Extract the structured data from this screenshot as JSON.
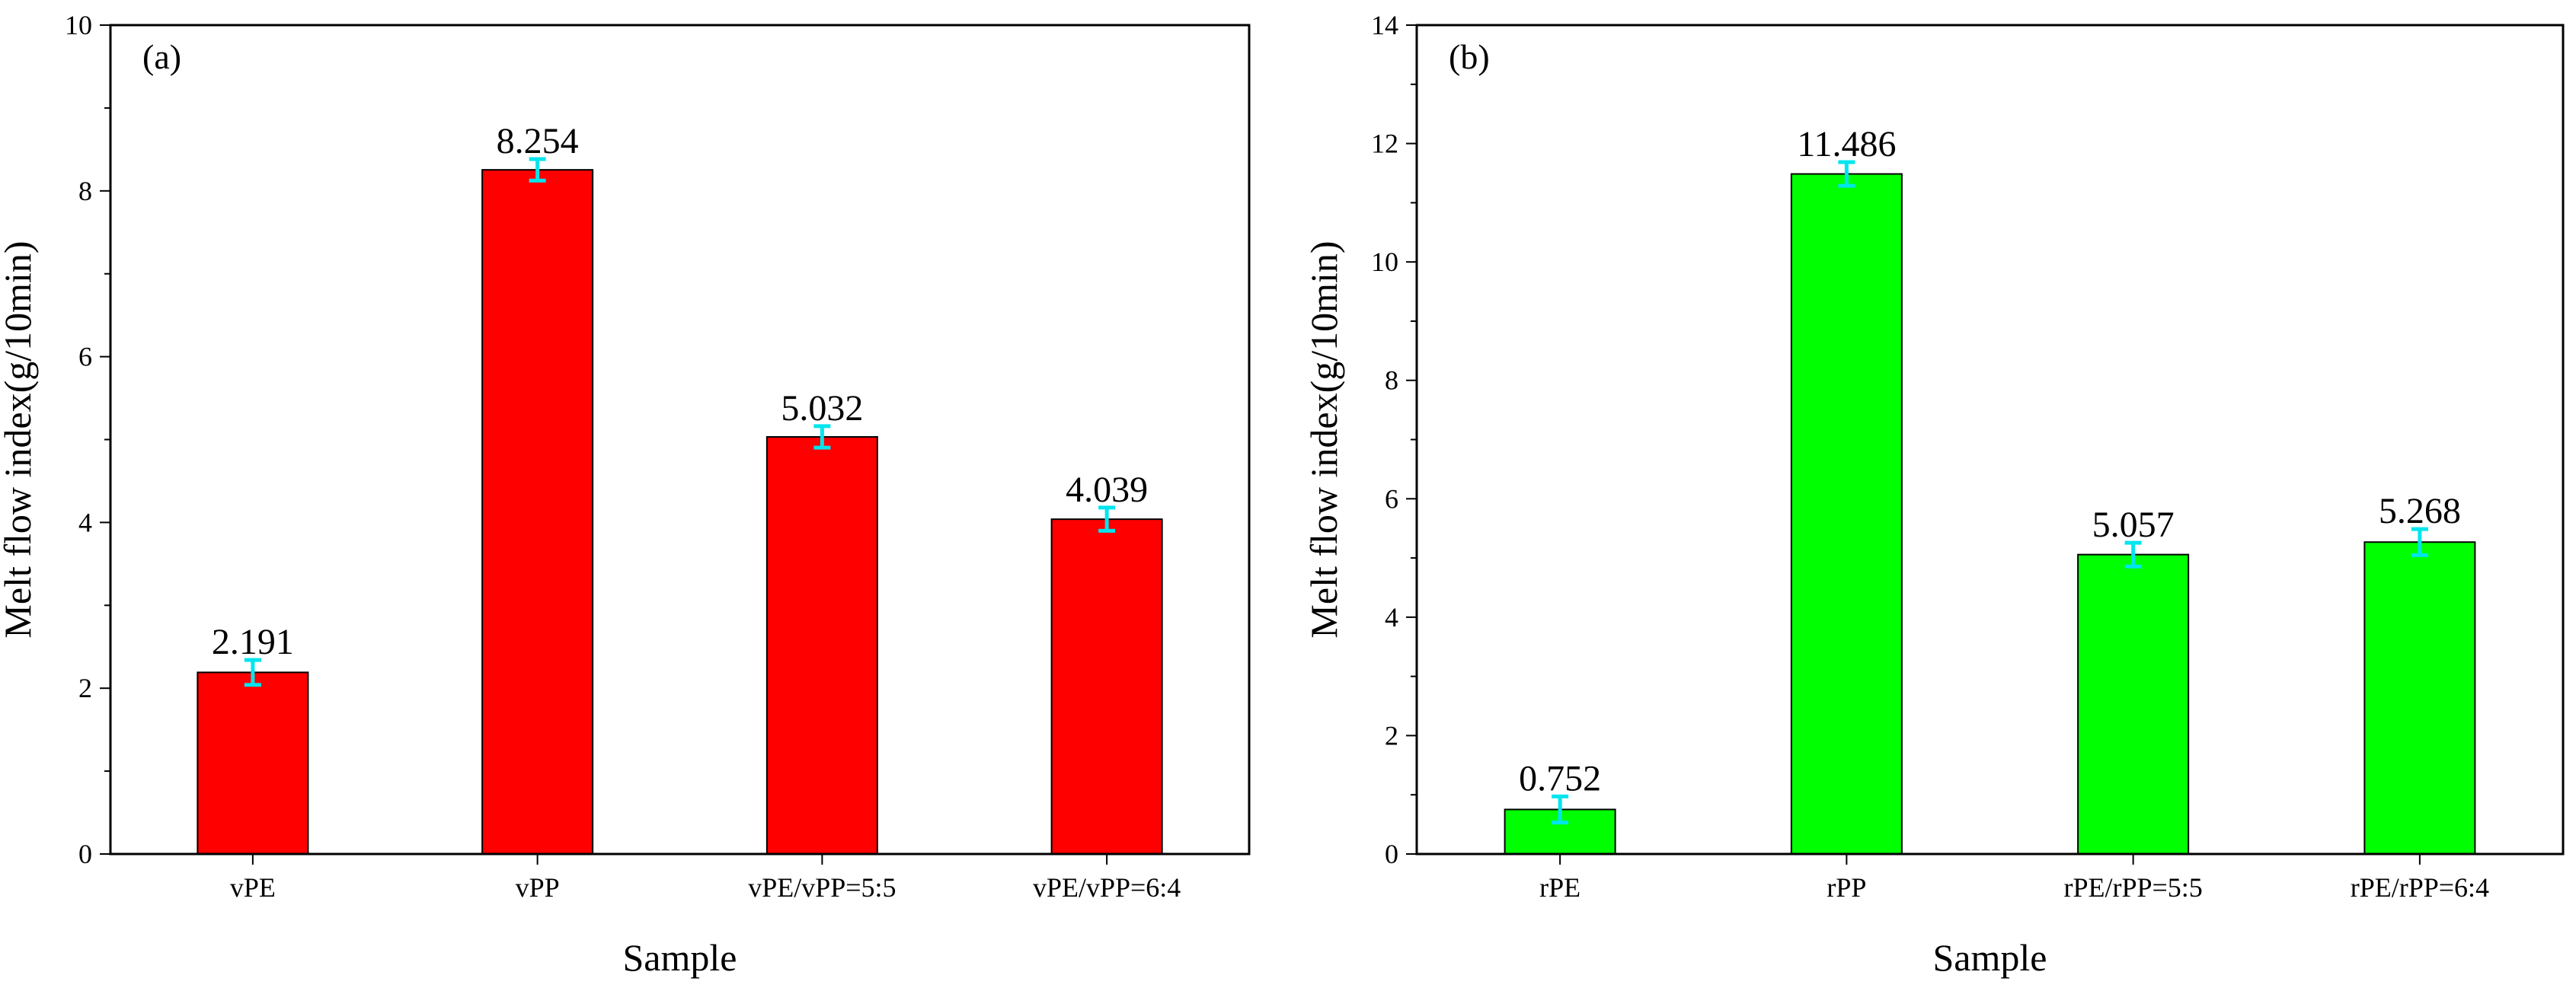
{
  "chart_data": [
    {
      "panel": "(a)",
      "type": "bar",
      "categories": [
        "vPE",
        "vPP",
        "vPE/vPP=5:5",
        "vPE/vPP=6:4"
      ],
      "values": [
        2.191,
        8.254,
        5.032,
        4.039
      ],
      "value_labels": [
        "2.191",
        "8.254",
        "5.032",
        "4.039"
      ],
      "errors": [
        0.15,
        0.13,
        0.13,
        0.14
      ],
      "xlabel": "Sample",
      "ylabel": "Melt flow index(g/10min)",
      "ylim": [
        0,
        10
      ],
      "yticks": [
        0,
        2,
        4,
        6,
        8,
        10
      ],
      "bar_color": "#ff0000",
      "error_color": "#00e5ee"
    },
    {
      "panel": "(b)",
      "type": "bar",
      "categories": [
        "rPE",
        "rPP",
        "rPE/rPP=5:5",
        "rPE/rPP=6:4"
      ],
      "values": [
        0.752,
        11.486,
        5.057,
        5.268
      ],
      "value_labels": [
        "0.752",
        "11.486",
        "5.057",
        "5.268"
      ],
      "errors": [
        0.22,
        0.2,
        0.2,
        0.22
      ],
      "xlabel": "Sample",
      "ylabel": "Melt flow index(g/10min)",
      "ylim": [
        0,
        14
      ],
      "yticks": [
        0,
        2,
        4,
        6,
        8,
        10,
        12,
        14
      ],
      "bar_color": "#00ff00",
      "error_color": "#00e5ee"
    }
  ]
}
